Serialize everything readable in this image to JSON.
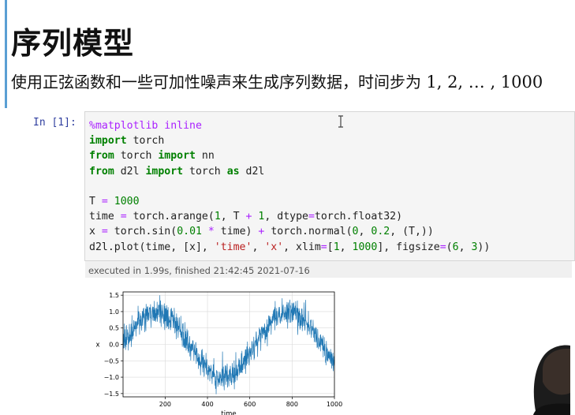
{
  "markdown": {
    "title": "序列模型",
    "desc_prefix": "使用正弦函数和一些可加性噪声来生成序列数据，时间步为 ",
    "desc_math": "1, 2, … , 1000"
  },
  "cell": {
    "prompt": "In [1]:",
    "code": {
      "l1_magic": "%matplotlib inline",
      "l2_kw": "import",
      "l2_rest": " torch",
      "l3_kw1": "from",
      "l3_mid": " torch ",
      "l3_kw2": "import",
      "l3_rest": " nn",
      "l4_kw1": "from",
      "l4_mid": " d2l ",
      "l4_kw2": "import",
      "l4_mid2": " torch ",
      "l4_kw3": "as",
      "l4_rest": " d2l",
      "l6_a": "T ",
      "l6_op": "=",
      "l6_num": " 1000",
      "l7_a": "time ",
      "l7_op": "=",
      "l7_b": " torch.arange(",
      "l7_n1": "1",
      "l7_c": ", T ",
      "l7_op2": "+",
      "l7_n2": " 1",
      "l7_d": ", dtype",
      "l7_op3": "=",
      "l7_e": "torch.float32)",
      "l8_a": "x ",
      "l8_op": "=",
      "l8_b": " torch.sin(",
      "l8_n1": "0.01",
      "l8_op2": " * ",
      "l8_c": "time) ",
      "l8_op3": "+",
      "l8_d": " torch.normal(",
      "l8_n2": "0",
      "l8_e": ", ",
      "l8_n3": "0.2",
      "l8_f": ", (T,))",
      "l9_a": "d2l.plot(time, [x], ",
      "l9_s1": "'time'",
      "l9_b": ", ",
      "l9_s2": "'x'",
      "l9_c": ", xlim",
      "l9_op": "=",
      "l9_d": "[",
      "l9_n1": "1",
      "l9_e": ", ",
      "l9_n2": "1000",
      "l9_f": "], figsize",
      "l9_op2": "=",
      "l9_g": "(",
      "l9_n3": "6",
      "l9_h": ", ",
      "l9_n4": "3",
      "l9_i": "))"
    },
    "exec_info": "executed in 1.99s, finished 21:42:45 2021-07-16"
  },
  "chart_data": {
    "type": "line",
    "title": "",
    "xlabel": "time",
    "ylabel": "x",
    "xlim": [
      1,
      1000
    ],
    "ylim": [
      -1.6,
      1.6
    ],
    "x_ticks": [
      200,
      400,
      600,
      800,
      1000
    ],
    "x_tick_labels": [
      "200",
      "400",
      "600",
      "800",
      "1000"
    ],
    "y_ticks": [
      -1.5,
      -1.0,
      -0.5,
      0.0,
      0.5,
      1.0,
      1.5
    ],
    "y_tick_labels": [
      "−1.5",
      "−1.0",
      "−0.5",
      "0.0",
      "0.5",
      "1.0",
      "1.5"
    ],
    "grid": true,
    "series": [
      {
        "formula": "sin(0.01*t) + normal(0, 0.2)",
        "t_start": 1,
        "t_end": 1000,
        "noise_std": 0.2,
        "color": "#1f77b4"
      }
    ]
  },
  "colors": {
    "accent_bar": "#5a9fd4",
    "prompt": "#303f9f",
    "keyword": "#008000",
    "string": "#ba2121",
    "operator": "#aa22ff",
    "line": "#1f77b4"
  }
}
